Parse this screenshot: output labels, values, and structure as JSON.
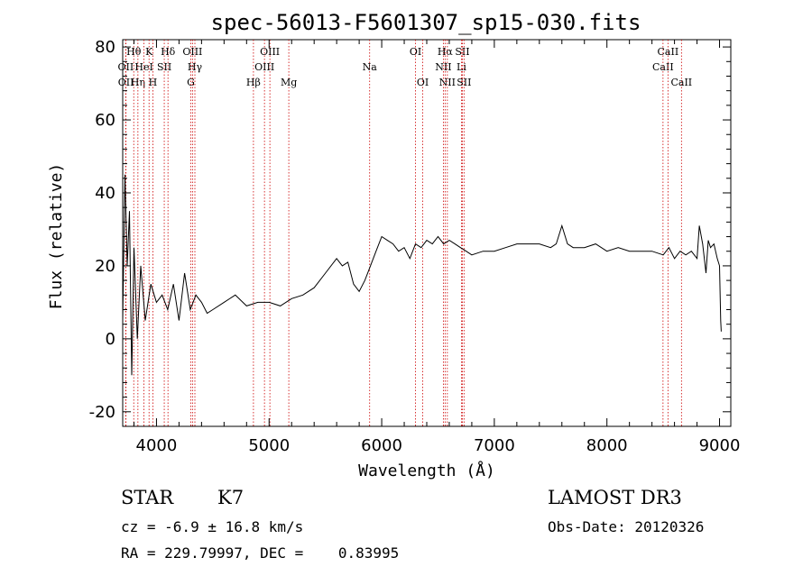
{
  "chart_data": {
    "type": "line",
    "title": "spec-56013-F5601307_sp15-030.fits",
    "xlabel": "Wavelength (Å)",
    "ylabel": "Flux (relative)",
    "xlim": [
      3700,
      9100
    ],
    "ylim": [
      -24,
      82
    ],
    "xticks": [
      4000,
      5000,
      6000,
      7000,
      8000,
      9000
    ],
    "yticks": [
      -20,
      0,
      20,
      40,
      60,
      80
    ],
    "series": [
      {
        "name": "spectrum",
        "x": [
          3700,
          3720,
          3740,
          3760,
          3780,
          3800,
          3830,
          3860,
          3900,
          3950,
          4000,
          4050,
          4100,
          4150,
          4200,
          4250,
          4300,
          4350,
          4400,
          4450,
          4500,
          4600,
          4700,
          4800,
          4900,
          5000,
          5100,
          5200,
          5300,
          5400,
          5500,
          5600,
          5650,
          5700,
          5750,
          5800,
          5850,
          5900,
          5950,
          6000,
          6050,
          6100,
          6150,
          6200,
          6250,
          6300,
          6350,
          6400,
          6450,
          6500,
          6550,
          6600,
          6650,
          6700,
          6750,
          6800,
          6900,
          7000,
          7100,
          7200,
          7300,
          7400,
          7500,
          7550,
          7600,
          7650,
          7700,
          7800,
          7900,
          8000,
          8100,
          8200,
          8300,
          8400,
          8500,
          8550,
          8600,
          8650,
          8700,
          8750,
          8800,
          8820,
          8850,
          8880,
          8900,
          8920,
          8950,
          8980,
          9000,
          9010,
          9015
        ],
        "y": [
          5,
          45,
          20,
          35,
          -10,
          25,
          0,
          20,
          5,
          15,
          10,
          12,
          8,
          15,
          5,
          18,
          8,
          12,
          10,
          7,
          8,
          10,
          12,
          9,
          10,
          10,
          9,
          11,
          12,
          14,
          18,
          22,
          20,
          21,
          15,
          13,
          16,
          20,
          24,
          28,
          27,
          26,
          24,
          25,
          22,
          26,
          25,
          27,
          26,
          28,
          26,
          27,
          26,
          25,
          24,
          23,
          24,
          24,
          25,
          26,
          26,
          26,
          25,
          26,
          31,
          26,
          25,
          25,
          26,
          24,
          25,
          24,
          24,
          24,
          23,
          25,
          22,
          24,
          23,
          24,
          22,
          31,
          26,
          18,
          27,
          25,
          26,
          22,
          20,
          5,
          2
        ]
      }
    ],
    "lines": [
      {
        "label": "Hθ",
        "x": 3798,
        "row": 1
      },
      {
        "label": "OII",
        "x": 3727,
        "row": 2
      },
      {
        "label": "OII",
        "x": 3729,
        "row": 3
      },
      {
        "label": "Hη",
        "x": 3835,
        "row": 3
      },
      {
        "label": "HeI",
        "x": 3889,
        "row": 2
      },
      {
        "label": "K",
        "x": 3934,
        "row": 1
      },
      {
        "label": "H",
        "x": 3968,
        "row": 3
      },
      {
        "label": "SII",
        "x": 4069,
        "row": 2
      },
      {
        "label": "Hδ",
        "x": 4102,
        "row": 1
      },
      {
        "label": "G",
        "x": 4305,
        "row": 3
      },
      {
        "label": "OIII",
        "x": 4320,
        "row": 1
      },
      {
        "label": "Hγ",
        "x": 4341,
        "row": 2
      },
      {
        "label": "Hβ",
        "x": 4861,
        "row": 3
      },
      {
        "label": "OIII",
        "x": 4959,
        "row": 2
      },
      {
        "label": "OIII",
        "x": 5007,
        "row": 1
      },
      {
        "label": "Mg",
        "x": 5175,
        "row": 3
      },
      {
        "label": "Na",
        "x": 5893,
        "row": 2
      },
      {
        "label": "OI",
        "x": 6300,
        "row": 1
      },
      {
        "label": "OI",
        "x": 6364,
        "row": 3
      },
      {
        "label": "NII",
        "x": 6548,
        "row": 2
      },
      {
        "label": "Hα",
        "x": 6563,
        "row": 1
      },
      {
        "label": "NII",
        "x": 6583,
        "row": 3
      },
      {
        "label": "Li",
        "x": 6708,
        "row": 2
      },
      {
        "label": "SII",
        "x": 6716,
        "row": 1
      },
      {
        "label": "SII",
        "x": 6731,
        "row": 3
      },
      {
        "label": "CaII",
        "x": 8498,
        "row": 2
      },
      {
        "label": "CaII",
        "x": 8542,
        "row": 1
      },
      {
        "label": "CaII",
        "x": 8662,
        "row": 3
      }
    ]
  },
  "info": {
    "object_class": "STAR",
    "subclass": "K7",
    "survey": "LAMOST DR3",
    "cz": "cz = -6.9 ± 16.8 km/s",
    "obs_date": "Obs-Date: 20120326",
    "coords": "RA = 229.79997, DEC =    0.83995"
  },
  "colors": {
    "line_marker": "#cc0000",
    "spectrum": "#000000"
  }
}
